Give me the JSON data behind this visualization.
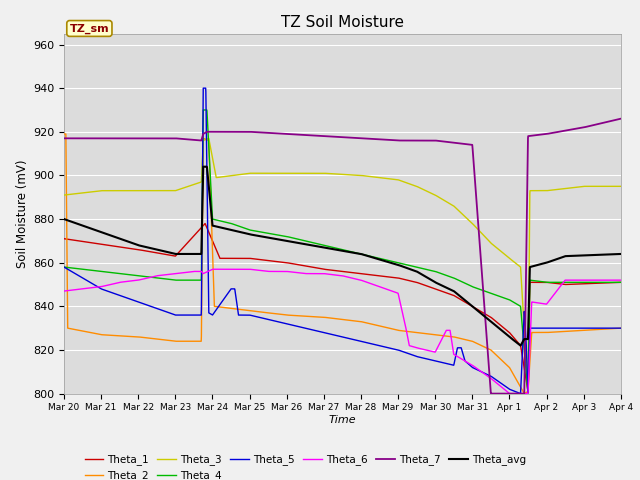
{
  "title": "TZ Soil Moisture",
  "xlabel": "Time",
  "ylabel": "Soil Moisture (mV)",
  "ylim": [
    800,
    965
  ],
  "xlim": [
    0,
    15
  ],
  "bg_color": "#dcdcdc",
  "fig_color": "#f0f0f0",
  "grid_color": "#ffffff",
  "legend_label": "TZ_sm",
  "legend_label_color": "#8b0000",
  "legend_box_color": "#ffffcc",
  "xtick_labels": [
    "Mar 20",
    "Mar 21",
    "Mar 22",
    "Mar 23",
    "Mar 24",
    "Mar 25",
    "Mar 26",
    "Mar 27",
    "Mar 28",
    "Mar 29",
    "Mar 30",
    "Mar 31",
    "Apr 1",
    "Apr 2",
    "Apr 3",
    "Apr 4"
  ],
  "series": {
    "Theta_1": {
      "color": "#cc0000"
    },
    "Theta_2": {
      "color": "#ff8c00"
    },
    "Theta_3": {
      "color": "#cccc00"
    },
    "Theta_4": {
      "color": "#00bb00"
    },
    "Theta_5": {
      "color": "#0000dd"
    },
    "Theta_6": {
      "color": "#ff00ff"
    },
    "Theta_7": {
      "color": "#880088"
    },
    "Theta_avg": {
      "color": "#000000"
    }
  }
}
